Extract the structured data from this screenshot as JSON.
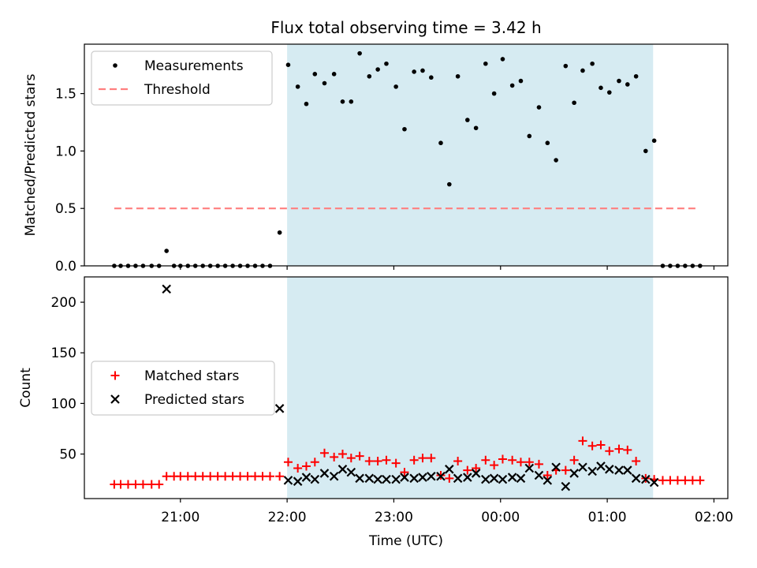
{
  "chart_data": {
    "title": "Flux total observing time = 3.42 h",
    "xlabel": "Time (UTC)",
    "x_unit": "hours UTC (values after 24 are past midnight)",
    "xlim": [
      20.1,
      26.13
    ],
    "xticks": [
      21,
      22,
      23,
      24,
      25,
      26
    ],
    "xtick_labels": [
      "21:00",
      "22:00",
      "23:00",
      "00:00",
      "01:00",
      "02:00"
    ],
    "shaded_span": {
      "x0": 22.0,
      "x1": 25.43,
      "color": "#add8e6"
    },
    "panels": [
      {
        "type": "scatter",
        "ylabel": "Matched/Predicted stars",
        "ylim": [
          0.0,
          1.93
        ],
        "yticks": [
          0.0,
          0.5,
          1.0,
          1.5
        ],
        "ytick_labels": [
          "0.0",
          "0.5",
          "1.0",
          "1.5"
        ],
        "legend": "top-left",
        "series": [
          {
            "name": "Measurements",
            "marker": "dot",
            "color": "#000000",
            "points": [
              [
                20.38,
                0
              ],
              [
                20.44,
                0
              ],
              [
                20.51,
                0
              ],
              [
                20.58,
                0
              ],
              [
                20.65,
                0
              ],
              [
                20.73,
                0
              ],
              [
                20.8,
                0
              ],
              [
                20.87,
                0.13
              ],
              [
                20.94,
                0
              ],
              [
                21.0,
                0
              ],
              [
                21.07,
                0
              ],
              [
                21.14,
                0
              ],
              [
                21.21,
                0
              ],
              [
                21.28,
                0
              ],
              [
                21.35,
                0
              ],
              [
                21.42,
                0
              ],
              [
                21.49,
                0
              ],
              [
                21.56,
                0
              ],
              [
                21.63,
                0
              ],
              [
                21.7,
                0
              ],
              [
                21.77,
                0
              ],
              [
                21.84,
                0
              ],
              [
                21.93,
                0.29
              ],
              [
                22.01,
                1.75
              ],
              [
                22.1,
                1.56
              ],
              [
                22.18,
                1.41
              ],
              [
                22.26,
                1.67
              ],
              [
                22.35,
                1.59
              ],
              [
                22.44,
                1.67
              ],
              [
                22.52,
                1.43
              ],
              [
                22.6,
                1.43
              ],
              [
                22.68,
                1.85
              ],
              [
                22.77,
                1.65
              ],
              [
                22.85,
                1.71
              ],
              [
                22.93,
                1.76
              ],
              [
                23.02,
                1.56
              ],
              [
                23.1,
                1.19
              ],
              [
                23.19,
                1.69
              ],
              [
                23.27,
                1.7
              ],
              [
                23.35,
                1.64
              ],
              [
                23.44,
                1.07
              ],
              [
                23.52,
                0.71
              ],
              [
                23.6,
                1.65
              ],
              [
                23.69,
                1.27
              ],
              [
                23.77,
                1.2
              ],
              [
                23.86,
                1.76
              ],
              [
                23.94,
                1.5
              ],
              [
                24.02,
                1.8
              ],
              [
                24.11,
                1.57
              ],
              [
                24.19,
                1.61
              ],
              [
                24.27,
                1.13
              ],
              [
                24.36,
                1.38
              ],
              [
                24.44,
                1.07
              ],
              [
                24.52,
                0.92
              ],
              [
                24.61,
                1.74
              ],
              [
                24.69,
                1.42
              ],
              [
                24.77,
                1.7
              ],
              [
                24.86,
                1.76
              ],
              [
                24.94,
                1.55
              ],
              [
                25.02,
                1.51
              ],
              [
                25.11,
                1.61
              ],
              [
                25.19,
                1.58
              ],
              [
                25.27,
                1.65
              ],
              [
                25.36,
                1.0
              ],
              [
                25.44,
                1.09
              ],
              [
                25.52,
                0
              ],
              [
                25.59,
                0
              ],
              [
                25.66,
                0
              ],
              [
                25.73,
                0
              ],
              [
                25.8,
                0
              ],
              [
                25.87,
                0
              ]
            ]
          },
          {
            "name": "Threshold",
            "style": "dashed",
            "color": "#ff7f7f",
            "points": [
              [
                20.38,
                0.5
              ],
              [
                25.86,
                0.5
              ]
            ]
          }
        ]
      },
      {
        "type": "scatter",
        "ylabel": "Count",
        "ylim": [
          6,
          225
        ],
        "yticks": [
          50,
          100,
          150,
          200
        ],
        "ytick_labels": [
          "50",
          "100",
          "150",
          "200"
        ],
        "legend": "center-left",
        "series": [
          {
            "name": "Matched stars",
            "marker": "plus",
            "color": "#ff0000",
            "points": [
              [
                20.38,
                20
              ],
              [
                20.44,
                20
              ],
              [
                20.51,
                20
              ],
              [
                20.58,
                20
              ],
              [
                20.65,
                20
              ],
              [
                20.73,
                20
              ],
              [
                20.8,
                20
              ],
              [
                20.87,
                28
              ],
              [
                20.94,
                28
              ],
              [
                21.0,
                28
              ],
              [
                21.07,
                28
              ],
              [
                21.14,
                28
              ],
              [
                21.21,
                28
              ],
              [
                21.28,
                28
              ],
              [
                21.35,
                28
              ],
              [
                21.42,
                28
              ],
              [
                21.49,
                28
              ],
              [
                21.56,
                28
              ],
              [
                21.63,
                28
              ],
              [
                21.7,
                28
              ],
              [
                21.77,
                28
              ],
              [
                21.84,
                28
              ],
              [
                21.93,
                28
              ],
              [
                22.01,
                42
              ],
              [
                22.1,
                36
              ],
              [
                22.18,
                38
              ],
              [
                22.26,
                42
              ],
              [
                22.35,
                51
              ],
              [
                22.44,
                47
              ],
              [
                22.52,
                50
              ],
              [
                22.6,
                46
              ],
              [
                22.68,
                48
              ],
              [
                22.77,
                43
              ],
              [
                22.85,
                43
              ],
              [
                22.93,
                44
              ],
              [
                23.02,
                41
              ],
              [
                23.1,
                32
              ],
              [
                23.19,
                44
              ],
              [
                23.27,
                46
              ],
              [
                23.35,
                46
              ],
              [
                23.44,
                29
              ],
              [
                23.52,
                26
              ],
              [
                23.6,
                43
              ],
              [
                23.69,
                34
              ],
              [
                23.77,
                36
              ],
              [
                23.86,
                44
              ],
              [
                23.94,
                39
              ],
              [
                24.02,
                45
              ],
              [
                24.11,
                44
              ],
              [
                24.19,
                42
              ],
              [
                24.27,
                42
              ],
              [
                24.36,
                40
              ],
              [
                24.44,
                29
              ],
              [
                24.52,
                34
              ],
              [
                24.61,
                34
              ],
              [
                24.69,
                44
              ],
              [
                24.77,
                63
              ],
              [
                24.86,
                58
              ],
              [
                24.94,
                59
              ],
              [
                25.02,
                53
              ],
              [
                25.11,
                55
              ],
              [
                25.19,
                54
              ],
              [
                25.27,
                43
              ],
              [
                25.36,
                26
              ],
              [
                25.44,
                25
              ],
              [
                25.52,
                24
              ],
              [
                25.59,
                24
              ],
              [
                25.66,
                24
              ],
              [
                25.73,
                24
              ],
              [
                25.8,
                24
              ],
              [
                25.87,
                24
              ]
            ]
          },
          {
            "name": "Predicted stars",
            "marker": "x",
            "color": "#000000",
            "points": [
              [
                20.87,
                213
              ],
              [
                21.93,
                95
              ],
              [
                22.01,
                24
              ],
              [
                22.1,
                23
              ],
              [
                22.18,
                27
              ],
              [
                22.26,
                25
              ],
              [
                22.35,
                31
              ],
              [
                22.44,
                28
              ],
              [
                22.52,
                35
              ],
              [
                22.6,
                32
              ],
              [
                22.68,
                26
              ],
              [
                22.77,
                26
              ],
              [
                22.85,
                25
              ],
              [
                22.93,
                25
              ],
              [
                23.02,
                25
              ],
              [
                23.1,
                27
              ],
              [
                23.19,
                26
              ],
              [
                23.27,
                27
              ],
              [
                23.35,
                28
              ],
              [
                23.44,
                28
              ],
              [
                23.52,
                35
              ],
              [
                23.6,
                26
              ],
              [
                23.69,
                27
              ],
              [
                23.77,
                31
              ],
              [
                23.86,
                25
              ],
              [
                23.94,
                26
              ],
              [
                24.02,
                25
              ],
              [
                24.11,
                27
              ],
              [
                24.19,
                26
              ],
              [
                24.27,
                36
              ],
              [
                24.36,
                29
              ],
              [
                24.44,
                24
              ],
              [
                24.52,
                37
              ],
              [
                24.61,
                18
              ],
              [
                24.69,
                31
              ],
              [
                24.77,
                37
              ],
              [
                24.86,
                33
              ],
              [
                24.94,
                38
              ],
              [
                25.02,
                35
              ],
              [
                25.11,
                34
              ],
              [
                25.19,
                34
              ],
              [
                25.27,
                26
              ],
              [
                25.36,
                25
              ],
              [
                25.44,
                22
              ]
            ]
          }
        ]
      }
    ]
  }
}
